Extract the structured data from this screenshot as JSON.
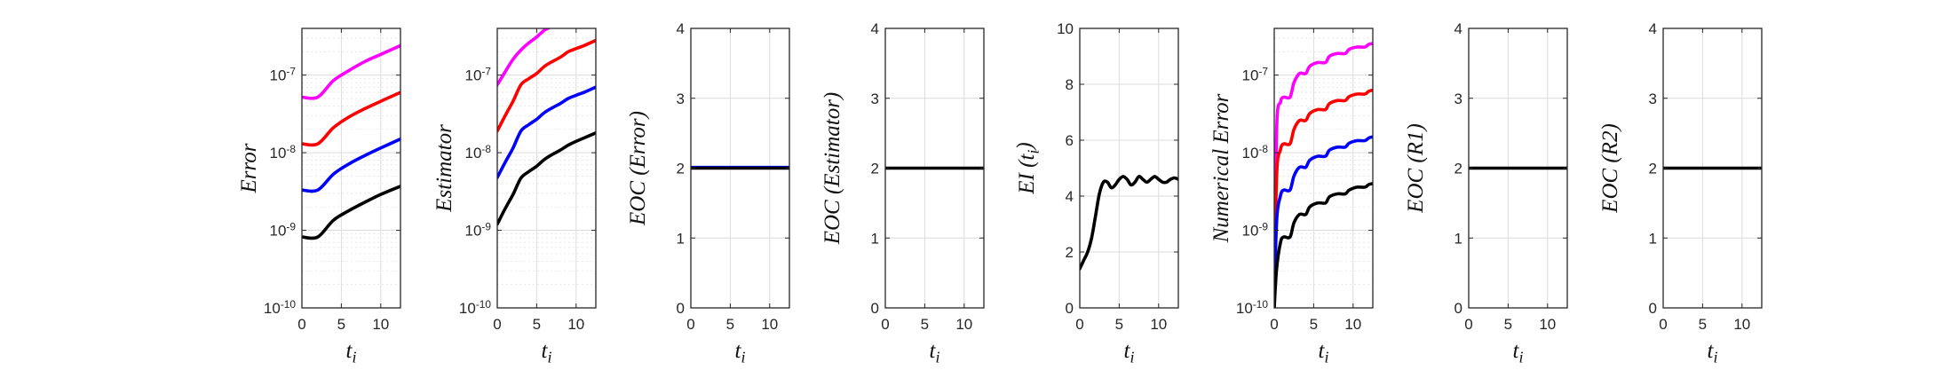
{
  "figure": {
    "background": "#ffffff"
  },
  "chart_data": [
    {
      "type": "line",
      "xlabel": "t_i",
      "ylabel": "Error",
      "yscale": "log",
      "ylim": [
        1e-10,
        4e-07
      ],
      "xlim": [
        0,
        12.5
      ],
      "xticks": [
        0,
        5,
        10
      ],
      "yticks": [
        {
          "v": 1e-10,
          "label": "10-10"
        },
        {
          "v": 1e-09,
          "label": "10-9"
        },
        {
          "v": 1e-08,
          "label": "10-8"
        },
        {
          "v": 1e-07,
          "label": "10-7"
        }
      ],
      "grid": true,
      "series": [
        {
          "color": "#ff00ff",
          "x": [
            0,
            2,
            4,
            6,
            8,
            10,
            12.5
          ],
          "y": [
            5.2e-08,
            5.2e-08,
            8.5e-08,
            1.15e-07,
            1.5e-07,
            1.85e-07,
            2.4e-07
          ]
        },
        {
          "color": "#ff0000",
          "x": [
            0,
            2,
            4,
            6,
            8,
            10,
            12.5
          ],
          "y": [
            1.3e-08,
            1.3e-08,
            2.1e-08,
            2.9e-08,
            3.7e-08,
            4.6e-08,
            6e-08
          ]
        },
        {
          "color": "#0000ff",
          "x": [
            0,
            2,
            4,
            6,
            8,
            10,
            12.5
          ],
          "y": [
            3.3e-09,
            3.3e-09,
            5.3e-09,
            7.2e-09,
            9.2e-09,
            1.15e-08,
            1.5e-08
          ]
        },
        {
          "color": "#000000",
          "x": [
            0,
            2,
            4,
            6,
            8,
            10,
            12.5
          ],
          "y": [
            8.2e-10,
            8.2e-10,
            1.35e-09,
            1.8e-09,
            2.3e-09,
            2.9e-09,
            3.7e-09
          ]
        }
      ]
    },
    {
      "type": "line",
      "xlabel": "t_i",
      "ylabel": "Estimator",
      "yscale": "log",
      "ylim": [
        1e-10,
        4e-07
      ],
      "xlim": [
        0,
        12.5
      ],
      "xticks": [
        0,
        5,
        10
      ],
      "yticks": [
        {
          "v": 1e-10,
          "label": "10-10"
        },
        {
          "v": 1e-09,
          "label": "10-9"
        },
        {
          "v": 1e-08,
          "label": "10-8"
        },
        {
          "v": 1e-07,
          "label": "10-7"
        }
      ],
      "grid": true,
      "series": [
        {
          "color": "#ff00ff",
          "x": [
            0,
            1,
            2,
            3,
            4,
            5,
            6,
            7
          ],
          "y": [
            7.5e-08,
            1.1e-07,
            1.6e-07,
            2.1e-07,
            2.6e-07,
            3.1e-07,
            3.8e-07,
            4.3e-07
          ]
        },
        {
          "color": "#ff0000",
          "x": [
            0,
            1,
            2,
            3,
            4,
            5,
            6,
            7,
            8,
            9,
            10,
            11,
            12.5
          ],
          "y": [
            1.9e-08,
            3e-08,
            4.6e-08,
            7.5e-08,
            9e-08,
            1.05e-07,
            1.3e-07,
            1.5e-07,
            1.7e-07,
            2e-07,
            2.2e-07,
            2.4e-07,
            2.8e-07
          ]
        },
        {
          "color": "#0000ff",
          "x": [
            0,
            1,
            2,
            3,
            4,
            5,
            6,
            7,
            8,
            9,
            10,
            11,
            12.5
          ],
          "y": [
            4.8e-09,
            7.5e-09,
            1.15e-08,
            1.9e-08,
            2.3e-08,
            2.7e-08,
            3.3e-08,
            3.8e-08,
            4.3e-08,
            5e-08,
            5.5e-08,
            6e-08,
            7e-08
          ]
        },
        {
          "color": "#000000",
          "x": [
            0,
            1,
            2,
            3,
            4,
            5,
            6,
            7,
            8,
            9,
            10,
            11,
            12.5
          ],
          "y": [
            1.2e-09,
            1.9e-09,
            2.9e-09,
            4.7e-09,
            5.7e-09,
            6.7e-09,
            8.2e-09,
            9.5e-09,
            1.08e-08,
            1.25e-08,
            1.4e-08,
            1.55e-08,
            1.8e-08
          ]
        }
      ]
    },
    {
      "type": "line",
      "xlabel": "t_i",
      "ylabel": "EOC (Error)",
      "yscale": "linear",
      "ylim": [
        0,
        4
      ],
      "xlim": [
        0,
        12.5
      ],
      "xticks": [
        0,
        5,
        10
      ],
      "yticks": [
        {
          "v": 0,
          "label": "0"
        },
        {
          "v": 1,
          "label": "1"
        },
        {
          "v": 2,
          "label": "2"
        },
        {
          "v": 3,
          "label": "3"
        },
        {
          "v": 4,
          "label": "4"
        }
      ],
      "grid": true,
      "series": [
        {
          "color": "#0000ff",
          "x": [
            0,
            12.5
          ],
          "y": [
            2.01,
            2.01
          ]
        },
        {
          "color": "#000000",
          "x": [
            0,
            12.5
          ],
          "y": [
            2.0,
            2.0
          ]
        }
      ]
    },
    {
      "type": "line",
      "xlabel": "t_i",
      "ylabel": "EOC (Estimator)",
      "yscale": "linear",
      "ylim": [
        0,
        4
      ],
      "xlim": [
        0,
        12.5
      ],
      "xticks": [
        0,
        5,
        10
      ],
      "yticks": [
        {
          "v": 0,
          "label": "0"
        },
        {
          "v": 1,
          "label": "1"
        },
        {
          "v": 2,
          "label": "2"
        },
        {
          "v": 3,
          "label": "3"
        },
        {
          "v": 4,
          "label": "4"
        }
      ],
      "grid": true,
      "series": [
        {
          "color": "#000000",
          "x": [
            0,
            12.5
          ],
          "y": [
            2.0,
            2.0
          ]
        }
      ]
    },
    {
      "type": "line",
      "xlabel": "t_i",
      "ylabel": "EI (t_i)",
      "yscale": "linear",
      "ylim": [
        0,
        10
      ],
      "xlim": [
        0,
        12.5
      ],
      "xticks": [
        0,
        5,
        10
      ],
      "yticks": [
        {
          "v": 0,
          "label": "0"
        },
        {
          "v": 2,
          "label": "2"
        },
        {
          "v": 4,
          "label": "4"
        },
        {
          "v": 6,
          "label": "6"
        },
        {
          "v": 8,
          "label": "8"
        },
        {
          "v": 10,
          "label": "10"
        }
      ],
      "grid": true,
      "series": [
        {
          "color": "#000000",
          "x": [
            0,
            0.5,
            1,
            1.5,
            2,
            2.5,
            3,
            3.5,
            4,
            4.5,
            5,
            5.5,
            6,
            6.5,
            7,
            7.5,
            8,
            8.5,
            9,
            9.5,
            10,
            10.5,
            11,
            11.5,
            12,
            12.5
          ],
          "y": [
            1.4,
            1.7,
            2.0,
            2.5,
            3.3,
            4.1,
            4.5,
            4.5,
            4.3,
            4.4,
            4.6,
            4.7,
            4.6,
            4.4,
            4.5,
            4.7,
            4.6,
            4.5,
            4.6,
            4.7,
            4.6,
            4.5,
            4.5,
            4.6,
            4.65,
            4.6
          ]
        }
      ]
    },
    {
      "type": "line",
      "xlabel": "t_i",
      "ylabel": "Numerical Error",
      "yscale": "log",
      "ylim": [
        1e-10,
        4e-07
      ],
      "xlim": [
        0,
        12.5
      ],
      "xticks": [
        0,
        5,
        10
      ],
      "yticks": [
        {
          "v": 1e-10,
          "label": "10-10"
        },
        {
          "v": 1e-09,
          "label": "10-9"
        },
        {
          "v": 1e-08,
          "label": "10-8"
        },
        {
          "v": 1e-07,
          "label": "10-7"
        }
      ],
      "grid": true,
      "series": [
        {
          "color": "#ff00ff",
          "x": [
            0,
            0.3,
            0.8,
            1.2,
            2,
            2.5,
            3.2,
            4,
            4.5,
            5.5,
            6.5,
            7,
            8,
            9,
            9.5,
            10.5,
            11.5,
            12,
            12.5
          ],
          "y": [
            1e-10,
            2e-08,
            4.5e-08,
            5.2e-08,
            5.2e-08,
            8e-08,
            1.05e-07,
            1.05e-07,
            1.3e-07,
            1.45e-07,
            1.45e-07,
            1.75e-07,
            1.9e-07,
            1.9e-07,
            2.15e-07,
            2.3e-07,
            2.3e-07,
            2.5e-07,
            2.55e-07
          ]
        },
        {
          "color": "#ff0000",
          "x": [
            0,
            0.3,
            0.8,
            1.2,
            2,
            2.5,
            3.2,
            4,
            4.5,
            5.5,
            6.5,
            7,
            8,
            9,
            9.5,
            10.5,
            11.5,
            12,
            12.5
          ],
          "y": [
            1e-10,
            5e-09,
            1.1e-08,
            1.3e-08,
            1.3e-08,
            2e-08,
            2.6e-08,
            2.6e-08,
            3.2e-08,
            3.6e-08,
            3.6e-08,
            4.3e-08,
            4.7e-08,
            4.7e-08,
            5.3e-08,
            5.7e-08,
            5.7e-08,
            6.2e-08,
            6.4e-08
          ]
        },
        {
          "color": "#0000ff",
          "x": [
            0,
            0.3,
            0.8,
            1.2,
            2,
            2.5,
            3.2,
            4,
            4.5,
            5.5,
            6.5,
            7,
            8,
            9,
            9.5,
            10.5,
            11.5,
            12,
            12.5
          ],
          "y": [
            1e-10,
            1.3e-09,
            2.8e-09,
            3.3e-09,
            3.3e-09,
            5e-09,
            6.5e-09,
            6.5e-09,
            8e-09,
            9e-09,
            9e-09,
            1.08e-08,
            1.18e-08,
            1.18e-08,
            1.33e-08,
            1.43e-08,
            1.43e-08,
            1.55e-08,
            1.6e-08
          ]
        },
        {
          "color": "#000000",
          "x": [
            0,
            0.3,
            0.8,
            1.2,
            2,
            2.5,
            3.2,
            4,
            4.5,
            5.5,
            6.5,
            7,
            8,
            9,
            9.5,
            10.5,
            11.5,
            12,
            12.5
          ],
          "y": [
            1e-10,
            3.2e-10,
            7e-10,
            8.2e-10,
            8.2e-10,
            1.25e-09,
            1.6e-09,
            1.6e-09,
            2e-09,
            2.25e-09,
            2.25e-09,
            2.7e-09,
            2.95e-09,
            2.95e-09,
            3.3e-09,
            3.6e-09,
            3.6e-09,
            3.9e-09,
            4e-09
          ]
        }
      ]
    },
    {
      "type": "line",
      "xlabel": "t_i",
      "ylabel": "EOC (R1)",
      "yscale": "linear",
      "ylim": [
        0,
        4
      ],
      "xlim": [
        0,
        12.5
      ],
      "xticks": [
        0,
        5,
        10
      ],
      "yticks": [
        {
          "v": 0,
          "label": "0"
        },
        {
          "v": 1,
          "label": "1"
        },
        {
          "v": 2,
          "label": "2"
        },
        {
          "v": 3,
          "label": "3"
        },
        {
          "v": 4,
          "label": "4"
        }
      ],
      "grid": true,
      "series": [
        {
          "color": "#000000",
          "x": [
            0,
            12.5
          ],
          "y": [
            2.0,
            2.0
          ]
        }
      ]
    },
    {
      "type": "line",
      "xlabel": "t_i",
      "ylabel": "EOC (R2)",
      "yscale": "linear",
      "ylim": [
        0,
        4
      ],
      "xlim": [
        0,
        12.5
      ],
      "xticks": [
        0,
        5,
        10
      ],
      "yticks": [
        {
          "v": 0,
          "label": "0"
        },
        {
          "v": 1,
          "label": "1"
        },
        {
          "v": 2,
          "label": "2"
        },
        {
          "v": 3,
          "label": "3"
        },
        {
          "v": 4,
          "label": "4"
        }
      ],
      "grid": true,
      "series": [
        {
          "color": "#000000",
          "x": [
            0,
            12.5
          ],
          "y": [
            2.0,
            2.0
          ]
        }
      ]
    }
  ]
}
